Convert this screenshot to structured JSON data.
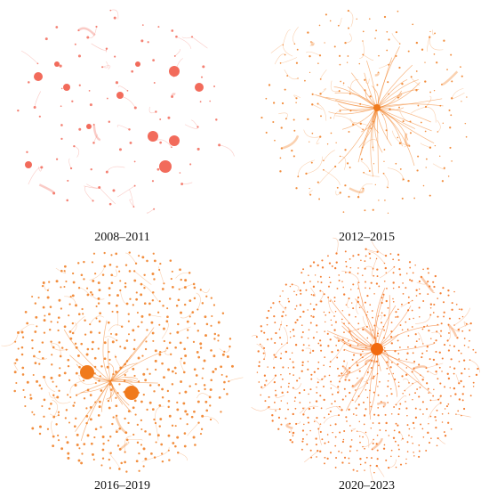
{
  "panels": [
    {
      "label": "2008–2011",
      "color": "#f26b5b",
      "density": "sparse"
    },
    {
      "label": "2012–2015",
      "color": "#f07a1c",
      "density": "medium"
    },
    {
      "label": "2016–2019",
      "color": "#f07a1c",
      "density": "dense"
    },
    {
      "label": "2020–2023",
      "color": "#f26a10",
      "density": "very-dense"
    }
  ]
}
